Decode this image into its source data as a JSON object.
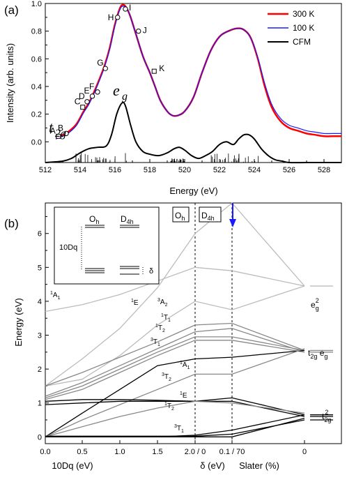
{
  "panel_a": {
    "label": "(a)",
    "chart_data": {
      "type": "line",
      "xlabel": "Energy (eV)",
      "ylabel": "Intensity (arb. units)",
      "xlim": [
        512,
        529
      ],
      "ylim": [
        -0.15,
        1.0
      ],
      "xticks": [
        "512",
        "514",
        "516",
        "518",
        "520",
        "522",
        "524",
        "526",
        "528"
      ],
      "yticks": [
        "0.0",
        "0.2",
        "0.4",
        "0.6",
        "0.8",
        "1.0"
      ],
      "colors": {
        "300K": "#ff0000",
        "100K": "#1a1aff",
        "CFM": "#000000"
      },
      "legend": [
        "300 K",
        "100 K",
        "CFM"
      ],
      "legend_position": "top-right",
      "series": [
        {
          "name": "300 K",
          "x": [
            512.6,
            513.0,
            513.4,
            513.8,
            514.2,
            514.5,
            514.8,
            515.1,
            515.4,
            515.7,
            516.0,
            516.3,
            516.5,
            516.7,
            516.9,
            517.2,
            517.6,
            518.0,
            518.3,
            518.6,
            519.0,
            519.3,
            519.6,
            520.0,
            520.5,
            521.0,
            521.5,
            522.0,
            522.5,
            523.0,
            523.4,
            523.8,
            524.2,
            524.6,
            525.0,
            525.5,
            526.0,
            526.5,
            527.0,
            527.5,
            528.0,
            528.5,
            529.0
          ],
          "y": [
            0.03,
            0.05,
            0.08,
            0.13,
            0.22,
            0.28,
            0.36,
            0.45,
            0.55,
            0.68,
            0.85,
            0.97,
            0.99,
            0.96,
            0.9,
            0.78,
            0.62,
            0.5,
            0.4,
            0.3,
            0.22,
            0.19,
            0.19,
            0.22,
            0.32,
            0.5,
            0.66,
            0.76,
            0.8,
            0.82,
            0.81,
            0.75,
            0.6,
            0.4,
            0.25,
            0.15,
            0.1,
            0.08,
            0.06,
            0.05,
            0.04,
            0.04,
            0.04
          ]
        },
        {
          "name": "100 K",
          "x": [
            512.6,
            513.0,
            513.4,
            513.8,
            514.2,
            514.5,
            514.8,
            515.1,
            515.4,
            515.7,
            516.0,
            516.3,
            516.5,
            516.7,
            516.9,
            517.2,
            517.6,
            518.0,
            518.3,
            518.6,
            519.0,
            519.3,
            519.6,
            520.0,
            520.5,
            521.0,
            521.5,
            522.0,
            522.5,
            523.0,
            523.4,
            523.8,
            524.2,
            524.6,
            525.0,
            525.5,
            526.0,
            526.5,
            527.0,
            527.5,
            528.0,
            528.5,
            529.0
          ],
          "y": [
            0.02,
            0.04,
            0.07,
            0.12,
            0.21,
            0.27,
            0.35,
            0.44,
            0.54,
            0.67,
            0.84,
            0.96,
            0.98,
            0.96,
            0.9,
            0.78,
            0.62,
            0.5,
            0.4,
            0.3,
            0.22,
            0.19,
            0.19,
            0.22,
            0.32,
            0.5,
            0.66,
            0.76,
            0.8,
            0.82,
            0.81,
            0.75,
            0.61,
            0.42,
            0.27,
            0.17,
            0.12,
            0.1,
            0.08,
            0.07,
            0.06,
            0.06,
            0.06
          ]
        },
        {
          "name": "CFM",
          "x": [
            512.0,
            513.0,
            513.5,
            514.0,
            514.5,
            515.0,
            515.5,
            515.8,
            516.1,
            516.4,
            516.6,
            516.9,
            517.2,
            517.6,
            518.0,
            518.5,
            519.0,
            519.4,
            519.7,
            520.0,
            520.4,
            520.8,
            521.2,
            521.6,
            522.0,
            522.4,
            522.8,
            523.1,
            523.4,
            523.7,
            524.0,
            524.4,
            524.8,
            525.2,
            525.6,
            526.0,
            527.0,
            528.0,
            529.0
          ],
          "y": [
            -0.15,
            -0.14,
            -0.12,
            -0.08,
            -0.05,
            -0.04,
            -0.03,
            0.05,
            0.2,
            0.28,
            0.26,
            0.12,
            0.0,
            -0.07,
            -0.09,
            -0.1,
            -0.08,
            -0.05,
            -0.04,
            -0.06,
            -0.1,
            -0.12,
            -0.1,
            -0.07,
            -0.02,
            0.0,
            -0.02,
            0.02,
            0.05,
            0.05,
            0.02,
            -0.05,
            -0.1,
            -0.13,
            -0.14,
            -0.15,
            -0.15,
            -0.15,
            -0.15
          ]
        }
      ],
      "markers": [
        {
          "label": "A",
          "x": 512.75,
          "y": 0.04,
          "shape": "square"
        },
        {
          "label": "B",
          "x": 513.2,
          "y": 0.06,
          "shape": "circle"
        },
        {
          "label": "C",
          "x": 514.15,
          "y": 0.25,
          "shape": "square"
        },
        {
          "label": "D",
          "x": 514.4,
          "y": 0.29,
          "shape": "circle"
        },
        {
          "label": "E",
          "x": 514.7,
          "y": 0.33,
          "shape": "circle"
        },
        {
          "label": "F",
          "x": 515.0,
          "y": 0.36,
          "shape": "circle"
        },
        {
          "label": "G",
          "x": 515.45,
          "y": 0.53,
          "shape": "circle"
        },
        {
          "label": "H",
          "x": 516.15,
          "y": 0.9,
          "shape": "circle"
        },
        {
          "label": "I",
          "x": 516.6,
          "y": 0.96,
          "shape": "circle"
        },
        {
          "label": "J",
          "x": 517.35,
          "y": 0.8,
          "shape": "circle"
        },
        {
          "label": "K",
          "x": 518.25,
          "y": 0.51,
          "shape": "square"
        }
      ],
      "annotations": [
        "t2g",
        "eg"
      ]
    }
  },
  "panel_b": {
    "label": "(b)",
    "chart_data": {
      "type": "line",
      "ylabel": "Energy (eV)",
      "xlabel_segments": [
        "10Dq (eV)",
        "δ (eV)",
        "Slater (%)"
      ],
      "xticks": [
        "0.0",
        "0.5",
        "1.0",
        "1.5",
        "2.0 / 0",
        "0.1 / 70",
        "0"
      ],
      "yticks": [
        "0",
        "1",
        "2",
        "3",
        "4",
        "5",
        "6"
      ],
      "ylim": [
        -0.2,
        6.9
      ],
      "region_labels": [
        "O_h",
        "D_4h"
      ],
      "state_labels": [
        "1A1",
        "1E",
        "3A2",
        "1T1",
        "1T2",
        "3T1",
        "1A1",
        "3T2",
        "1E",
        "1T2",
        "3T1"
      ],
      "right_labels": [
        "e_g^2",
        "t_2g e_g",
        "t_2g^2"
      ],
      "inset": {
        "oh": "O_h",
        "d4h": "D_4h",
        "tendq": "10Dq",
        "delta": "δ"
      }
    }
  },
  "text": {
    "ylabel_a": "Intensity (arb. units)",
    "xlabel_a": "Energy (eV)",
    "ylabel_b": "Energy (eV)",
    "xlabel_b1": "10Dq (eV)",
    "xlabel_b2": "δ (eV)",
    "xlabel_b3": "Slater (%)"
  }
}
